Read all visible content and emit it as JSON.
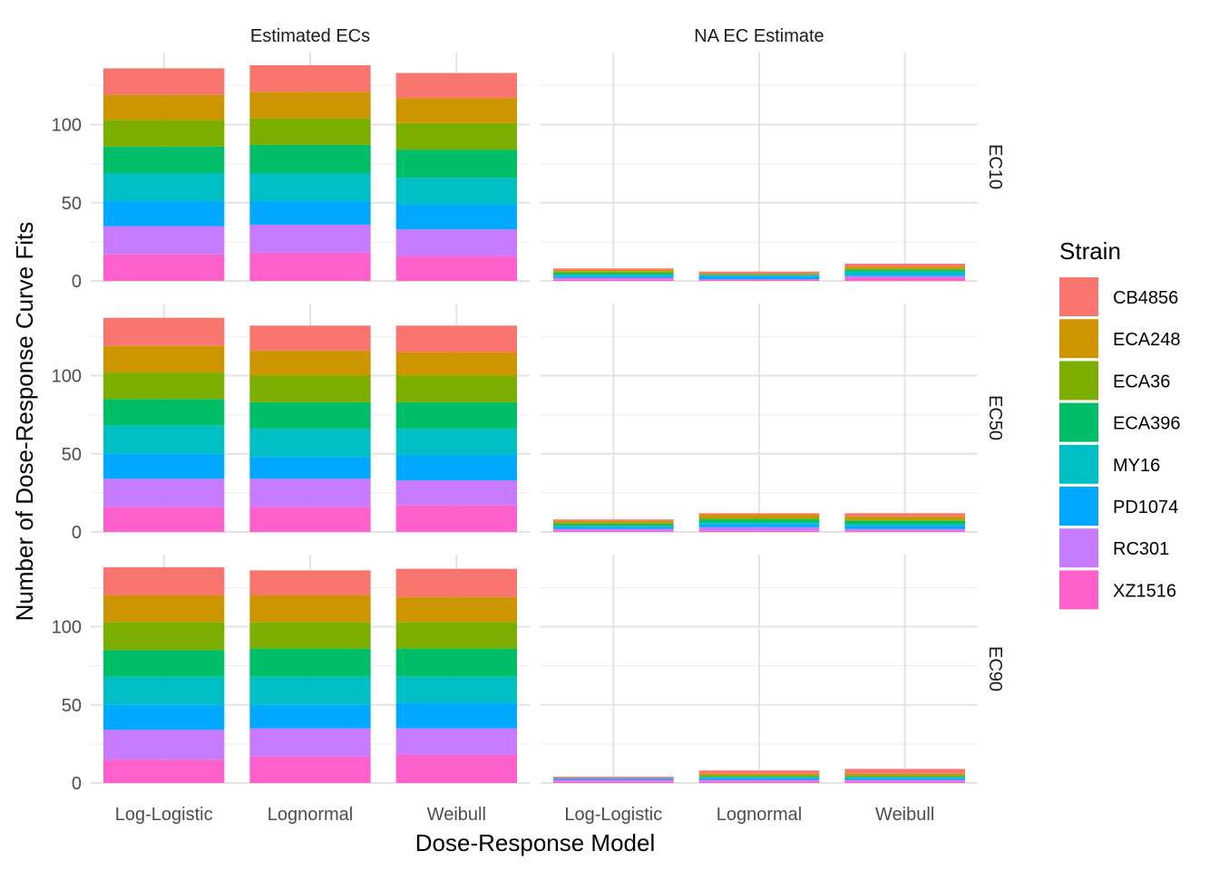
{
  "chart_data": {
    "type": "bar",
    "stacked": true,
    "xlabel": "Dose-Response Model",
    "ylabel": "Number of Dose-Response Curve Fits",
    "yticks": [
      0,
      50,
      100
    ],
    "ylim": [
      0,
      142
    ],
    "categories": [
      "Log-Logistic",
      "Lognormal",
      "Weibull"
    ],
    "column_facets": [
      "Estimated ECs",
      "NA EC Estimate"
    ],
    "row_facets": [
      "EC10",
      "EC50",
      "EC90"
    ],
    "legend": {
      "title": "Strain",
      "position": "right",
      "strains": [
        "CB4856",
        "ECA248",
        "ECA36",
        "ECA396",
        "MY16",
        "PD1074",
        "RC301",
        "XZ1516"
      ],
      "colors": {
        "CB4856": "#F8766D",
        "ECA248": "#CD9600",
        "ECA36": "#7CAE00",
        "ECA396": "#00BE67",
        "MY16": "#00BFC4",
        "PD1074": "#00A9FF",
        "RC301": "#C77CFF",
        "XZ1516": "#FF61CC"
      }
    },
    "stack_order_bottom_to_top": [
      "XZ1516",
      "RC301",
      "PD1074",
      "MY16",
      "ECA396",
      "ECA36",
      "ECA248",
      "CB4856"
    ],
    "panels": [
      {
        "row": "EC10",
        "col": "Estimated ECs",
        "bars": {
          "Log-Logistic": [
            17,
            18,
            16,
            18,
            17,
            17,
            16,
            17
          ],
          "Lognormal": [
            18,
            18,
            15,
            18,
            18,
            17,
            17,
            17
          ],
          "Weibull": [
            16,
            17,
            16,
            17,
            18,
            17,
            16,
            16
          ]
        }
      },
      {
        "row": "EC10",
        "col": "NA EC Estimate",
        "bars": {
          "Log-Logistic": [
            1,
            1,
            1,
            1,
            1,
            1,
            1,
            1
          ],
          "Lognormal": [
            1,
            0,
            2,
            1,
            0,
            0,
            1,
            1
          ],
          "Weibull": [
            2,
            1,
            1,
            2,
            1,
            1,
            1,
            2
          ]
        }
      },
      {
        "row": "EC50",
        "col": "Estimated ECs",
        "bars": {
          "Log-Logistic": [
            16,
            18,
            16,
            18,
            17,
            17,
            17,
            18
          ],
          "Lognormal": [
            16,
            18,
            14,
            18,
            17,
            17,
            16,
            16
          ],
          "Weibull": [
            17,
            16,
            16,
            17,
            17,
            17,
            15,
            17
          ]
        }
      },
      {
        "row": "EC50",
        "col": "NA EC Estimate",
        "bars": {
          "Log-Logistic": [
            1,
            1,
            1,
            1,
            1,
            1,
            1,
            1
          ],
          "Lognormal": [
            1,
            2,
            2,
            1,
            2,
            1,
            2,
            1
          ],
          "Weibull": [
            1,
            1,
            2,
            1,
            2,
            1,
            2,
            2
          ]
        }
      },
      {
        "row": "EC90",
        "col": "Estimated ECs",
        "bars": {
          "Log-Logistic": [
            15,
            19,
            16,
            18,
            17,
            18,
            17,
            18
          ],
          "Lognormal": [
            17,
            18,
            15,
            18,
            18,
            17,
            17,
            16
          ],
          "Weibull": [
            18,
            17,
            16,
            17,
            18,
            17,
            16,
            18
          ]
        }
      },
      {
        "row": "EC90",
        "col": "NA EC Estimate",
        "bars": {
          "Log-Logistic": [
            1,
            1,
            1,
            0,
            0,
            0,
            0,
            1
          ],
          "Lognormal": [
            1,
            1,
            1,
            1,
            0,
            1,
            1,
            2
          ],
          "Weibull": [
            1,
            1,
            1,
            1,
            0,
            1,
            1,
            3
          ]
        }
      }
    ]
  }
}
